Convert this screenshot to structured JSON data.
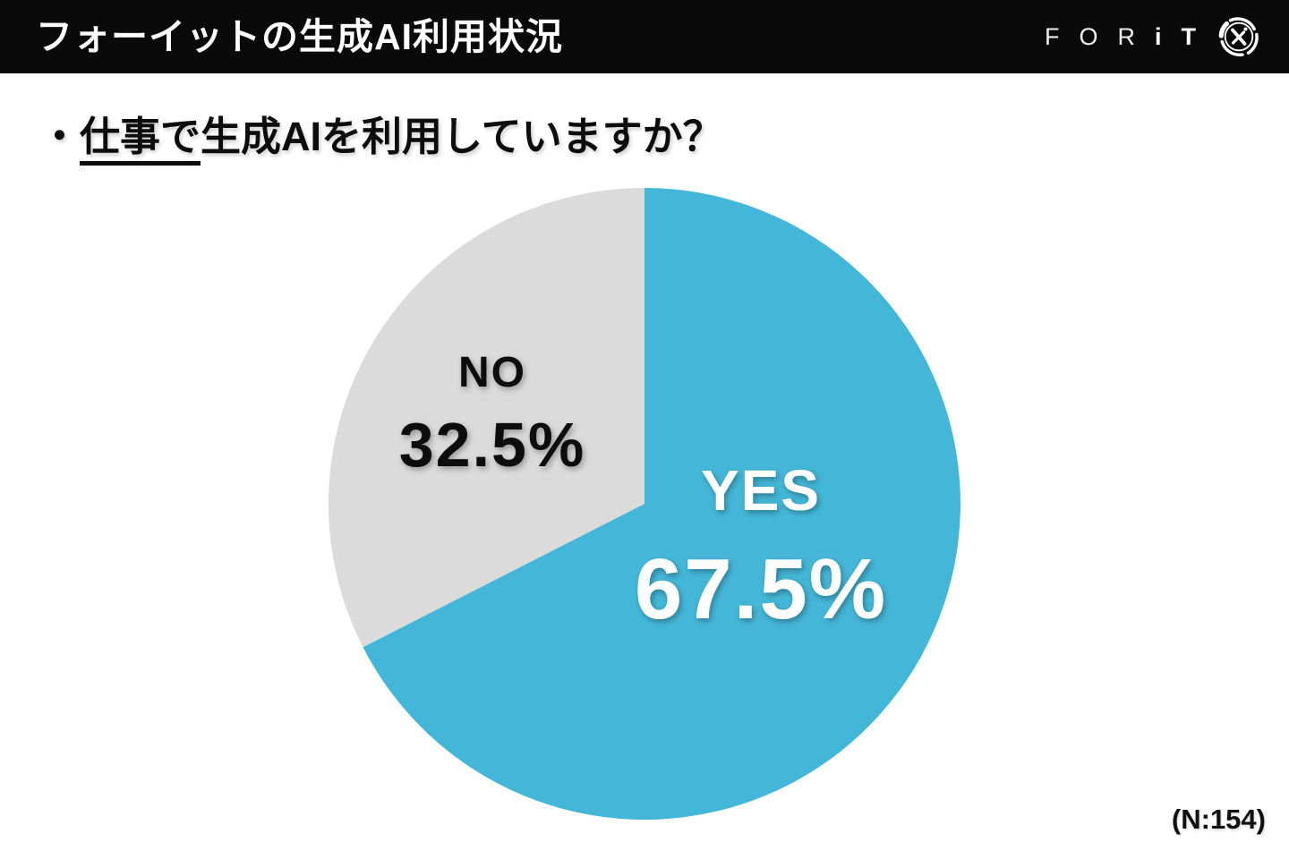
{
  "header": {
    "title": "フォーイットの生成AI利用状況",
    "logo_light": "FOR",
    "logo_bold": "iT"
  },
  "question": {
    "bullet": "・",
    "underlined": "仕事で",
    "rest": "生成AIを利用していますか？"
  },
  "footnote": "(N:154)",
  "chart_data": {
    "type": "pie",
    "title": "仕事で生成AIを利用していますか？",
    "sample_size_label": "N:154",
    "start_angle_deg": 0,
    "direction": "clockwise",
    "legend_position": "none",
    "categories": [
      "YES",
      "NO"
    ],
    "values": [
      67.5,
      32.5
    ],
    "slices": [
      {
        "label": "YES",
        "value": 67.5,
        "display_value": "67.5%",
        "color": "#44B7D8",
        "text_color": "#FFFFFF",
        "label_offset": [
          130,
          38
        ],
        "label_size": 64,
        "value_size": 96
      },
      {
        "label": "NO",
        "value": 32.5,
        "display_value": "32.5%",
        "color": "#DBDBDB",
        "text_color": "#0D0D0D",
        "label_offset": [
          -170,
          -108
        ],
        "label_size": 48,
        "value_size": 70
      }
    ]
  }
}
